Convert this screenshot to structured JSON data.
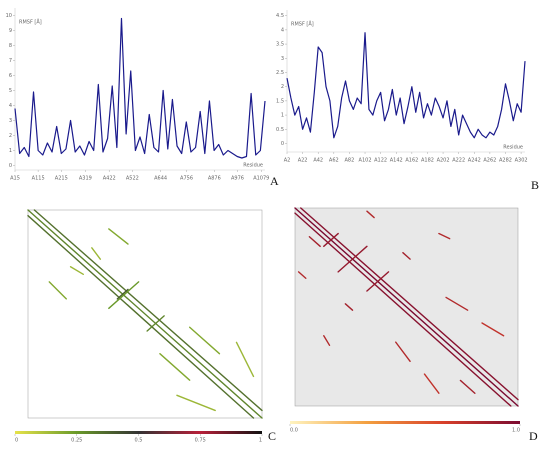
{
  "chart_data": [
    {
      "type": "line",
      "panel": "A",
      "y_label": "RMSF [Å]",
      "x_label": "Residue",
      "color": "#1a1a8c",
      "x": [
        15,
        35,
        55,
        75,
        95,
        115,
        135,
        155,
        175,
        195,
        215,
        235,
        255,
        275,
        295,
        315,
        335,
        355,
        375,
        395,
        415,
        435,
        455,
        475,
        495,
        515,
        535,
        555,
        575,
        595,
        615,
        635,
        655,
        675,
        695,
        715,
        735,
        755,
        775,
        795,
        815,
        835,
        855,
        875,
        895,
        915,
        935,
        955,
        975,
        995,
        1015,
        1035,
        1055,
        1075,
        1095
      ],
      "values": [
        3.8,
        0.8,
        1.2,
        0.6,
        4.9,
        1.0,
        0.7,
        1.5,
        0.9,
        2.6,
        0.8,
        1.1,
        3.0,
        0.9,
        1.3,
        0.7,
        1.6,
        1.0,
        5.4,
        0.9,
        1.8,
        5.3,
        1.2,
        9.8,
        2.1,
        6.3,
        1.0,
        1.9,
        0.8,
        3.4,
        1.2,
        0.9,
        5.0,
        1.1,
        4.4,
        1.3,
        0.8,
        2.9,
        0.9,
        1.2,
        3.6,
        0.8,
        4.3,
        1.0,
        1.4,
        0.7,
        1.0,
        0.8,
        0.6,
        0.5,
        0.6,
        4.8,
        0.7,
        1.0,
        4.3
      ],
      "xlim": [
        15,
        1095
      ],
      "ylim": [
        -0.3,
        10.5
      ],
      "yticks": [
        0,
        1,
        2,
        3,
        4,
        5,
        6,
        7,
        8,
        9,
        10
      ],
      "xticks": [
        {
          "value": 15,
          "label": "A15"
        },
        {
          "value": 115,
          "label": "A115"
        },
        {
          "value": 215,
          "label": "A215"
        },
        {
          "value": 319,
          "label": "A319"
        },
        {
          "value": 422,
          "label": "A422"
        },
        {
          "value": 522,
          "label": "A522"
        },
        {
          "value": 644,
          "label": "A644"
        },
        {
          "value": 756,
          "label": "A756"
        },
        {
          "value": 876,
          "label": "A876"
        },
        {
          "value": 976,
          "label": "A976"
        },
        {
          "value": 1079,
          "label": "A1079"
        }
      ]
    },
    {
      "type": "line",
      "panel": "B",
      "y_label": "RMSF [Å]",
      "x_label": "Residue",
      "color": "#1a1a8c",
      "x": [
        2,
        7,
        12,
        17,
        22,
        27,
        32,
        37,
        42,
        47,
        52,
        57,
        62,
        67,
        72,
        77,
        82,
        87,
        92,
        97,
        102,
        107,
        112,
        117,
        122,
        127,
        132,
        137,
        142,
        147,
        152,
        157,
        162,
        167,
        172,
        177,
        182,
        187,
        192,
        197,
        202,
        207,
        212,
        217,
        222,
        227,
        232,
        237,
        242,
        247,
        252,
        257,
        262,
        267,
        272,
        277,
        282,
        287,
        292,
        297,
        302,
        307
      ],
      "values": [
        2.3,
        1.6,
        1.0,
        1.3,
        0.5,
        0.9,
        0.4,
        1.8,
        3.4,
        3.2,
        2.0,
        1.5,
        0.2,
        0.6,
        1.6,
        2.2,
        1.5,
        1.2,
        1.6,
        1.4,
        3.9,
        1.2,
        1.0,
        1.5,
        1.8,
        0.8,
        1.2,
        1.9,
        1.0,
        1.6,
        0.7,
        1.3,
        2.0,
        1.1,
        1.8,
        0.9,
        1.4,
        1.0,
        1.6,
        1.3,
        0.9,
        1.5,
        0.6,
        1.2,
        0.3,
        1.0,
        0.7,
        0.4,
        0.2,
        0.5,
        0.3,
        0.2,
        0.4,
        0.3,
        0.6,
        1.2,
        2.1,
        1.5,
        0.8,
        1.4,
        1.1,
        2.9
      ],
      "xlim": [
        2,
        307
      ],
      "ylim": [
        -0.3,
        4.7
      ],
      "yticks": [
        0,
        0.5,
        1,
        1.5,
        2,
        2.5,
        3,
        3.5,
        4,
        4.5
      ],
      "xticks": [
        {
          "value": 2,
          "label": "A2"
        },
        {
          "value": 22,
          "label": "A22"
        },
        {
          "value": 42,
          "label": "A42"
        },
        {
          "value": 62,
          "label": "A62"
        },
        {
          "value": 82,
          "label": "A82"
        },
        {
          "value": 102,
          "label": "A102"
        },
        {
          "value": 122,
          "label": "A122"
        },
        {
          "value": 142,
          "label": "A142"
        },
        {
          "value": 162,
          "label": "A162"
        },
        {
          "value": 182,
          "label": "A182"
        },
        {
          "value": 202,
          "label": "A202"
        },
        {
          "value": 222,
          "label": "A222"
        },
        {
          "value": 242,
          "label": "A242"
        },
        {
          "value": 262,
          "label": "A262"
        },
        {
          "value": 282,
          "label": "A282"
        },
        {
          "value": 302,
          "label": "A302"
        }
      ]
    },
    {
      "type": "heatmap",
      "panel": "C",
      "background": "#ffffff",
      "lim": [
        0,
        1100
      ],
      "colors": [
        "#e6e34a",
        "#6a9a2a",
        "#333333",
        "#b8203a",
        "#111111"
      ],
      "colorbar_ticks": [
        0,
        0.25,
        0.5,
        0.75,
        1
      ],
      "contacts": [
        {
          "from": [
            0,
            0
          ],
          "to": [
            1100,
            1100
          ],
          "value": 0.3
        },
        {
          "from": [
            30,
            0
          ],
          "to": [
            1100,
            1060
          ],
          "value": 0.35
        },
        {
          "from": [
            0,
            30
          ],
          "to": [
            1060,
            1100
          ],
          "value": 0.35
        },
        {
          "from": [
            100,
            380
          ],
          "to": [
            180,
            470
          ],
          "value": 0.2
        },
        {
          "from": [
            380,
            100
          ],
          "to": [
            470,
            180
          ],
          "value": 0.2
        },
        {
          "from": [
            420,
            470
          ],
          "to": [
            470,
            420
          ],
          "value": 0.4
        },
        {
          "from": [
            380,
            520
          ],
          "to": [
            520,
            380
          ],
          "value": 0.25
        },
        {
          "from": [
            560,
            640
          ],
          "to": [
            640,
            560
          ],
          "value": 0.3
        },
        {
          "from": [
            700,
            980
          ],
          "to": [
            880,
            1060
          ],
          "value": 0.15
        },
        {
          "from": [
            980,
            700
          ],
          "to": [
            1060,
            880
          ],
          "value": 0.15
        },
        {
          "from": [
            620,
            760
          ],
          "to": [
            760,
            900
          ],
          "value": 0.2
        },
        {
          "from": [
            760,
            620
          ],
          "to": [
            900,
            760
          ],
          "value": 0.2
        },
        {
          "from": [
            200,
            300
          ],
          "to": [
            260,
            340
          ],
          "value": 0.15
        },
        {
          "from": [
            300,
            200
          ],
          "to": [
            340,
            260
          ],
          "value": 0.15
        }
      ]
    },
    {
      "type": "heatmap",
      "panel": "D",
      "background": "#e8e8e8",
      "lim": [
        0,
        310
      ],
      "colors": [
        "#fff4c0",
        "#f3a040",
        "#d8402a",
        "#7a0a30"
      ],
      "colorbar_ticks": [
        {
          "value": 0,
          "label": "0.0"
        },
        {
          "value": 1,
          "label": "1.0"
        }
      ],
      "contacts": [
        {
          "from": [
            0,
            0
          ],
          "to": [
            310,
            310
          ],
          "value": 1
        },
        {
          "from": [
            8,
            0
          ],
          "to": [
            310,
            300
          ],
          "value": 0.95
        },
        {
          "from": [
            0,
            8
          ],
          "to": [
            300,
            310
          ],
          "value": 0.95
        },
        {
          "from": [
            40,
            60
          ],
          "to": [
            60,
            40
          ],
          "value": 0.9
        },
        {
          "from": [
            60,
            100
          ],
          "to": [
            100,
            60
          ],
          "value": 0.9
        },
        {
          "from": [
            100,
            130
          ],
          "to": [
            130,
            100
          ],
          "value": 0.9
        },
        {
          "from": [
            20,
            45
          ],
          "to": [
            35,
            60
          ],
          "value": 0.85
        },
        {
          "from": [
            140,
            210
          ],
          "to": [
            160,
            240
          ],
          "value": 0.8
        },
        {
          "from": [
            210,
            140
          ],
          "to": [
            240,
            160
          ],
          "value": 0.8
        },
        {
          "from": [
            230,
            270
          ],
          "to": [
            250,
            290
          ],
          "value": 0.85
        },
        {
          "from": [
            5,
            100
          ],
          "to": [
            15,
            110
          ],
          "value": 0.8
        },
        {
          "from": [
            100,
            5
          ],
          "to": [
            110,
            15
          ],
          "value": 0.8
        },
        {
          "from": [
            40,
            200
          ],
          "to": [
            48,
            215
          ],
          "value": 0.8
        },
        {
          "from": [
            200,
            40
          ],
          "to": [
            215,
            48
          ],
          "value": 0.8
        },
        {
          "from": [
            180,
            260
          ],
          "to": [
            200,
            290
          ],
          "value": 0.75
        },
        {
          "from": [
            260,
            180
          ],
          "to": [
            290,
            200
          ],
          "value": 0.75
        },
        {
          "from": [
            70,
            150
          ],
          "to": [
            80,
            160
          ],
          "value": 0.85
        },
        {
          "from": [
            150,
            70
          ],
          "to": [
            160,
            80
          ],
          "value": 0.85
        }
      ]
    }
  ]
}
